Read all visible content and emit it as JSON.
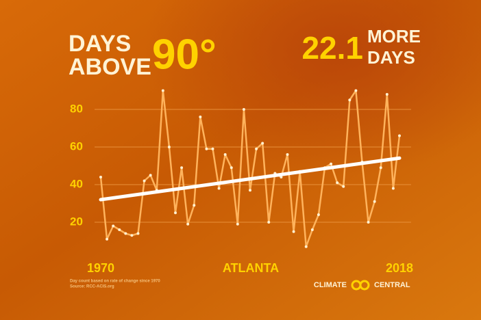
{
  "chart_data": {
    "type": "line",
    "title_lines": [
      "DAYS",
      "ABOVE"
    ],
    "title_highlight": "90°",
    "change": 22.1,
    "change_label_lines": [
      "MORE",
      "DAYS"
    ],
    "location": "ATLANTA",
    "notes": [
      "Day count based on rate of change since 1970",
      "Source: RCC-ACIS.org"
    ],
    "brand": [
      "CLIMATE",
      "CENTRAL"
    ],
    "x": [
      1970,
      1971,
      1972,
      1973,
      1974,
      1975,
      1976,
      1977,
      1978,
      1979,
      1980,
      1981,
      1982,
      1983,
      1984,
      1985,
      1986,
      1987,
      1988,
      1989,
      1990,
      1991,
      1992,
      1993,
      1994,
      1995,
      1996,
      1997,
      1998,
      1999,
      2000,
      2001,
      2002,
      2003,
      2004,
      2005,
      2006,
      2007,
      2008,
      2009,
      2010,
      2011,
      2012,
      2013,
      2014,
      2015,
      2016,
      2017,
      2018
    ],
    "series": [
      {
        "color": "#ffb35c",
        "values": [
          44,
          11,
          18,
          16,
          14,
          13,
          14,
          42,
          45,
          37,
          90,
          60,
          25,
          49,
          19,
          29,
          76,
          59,
          59,
          38,
          56,
          49,
          19,
          80,
          37,
          59,
          62,
          20,
          46,
          44,
          56,
          15,
          47,
          7,
          16,
          24,
          49,
          51,
          41,
          39,
          85,
          90,
          52,
          20,
          31,
          49,
          88,
          38,
          66
        ]
      }
    ],
    "trend": {
      "color": "#ffffff",
      "x": [
        1970,
        2018
      ],
      "values": [
        32,
        54.1
      ]
    },
    "xlim": [
      1970,
      2018
    ],
    "xticks": [
      1970,
      2018
    ],
    "ylim": [
      0,
      95
    ],
    "yticks": [
      20,
      40,
      60,
      80
    ],
    "grid": true
  }
}
